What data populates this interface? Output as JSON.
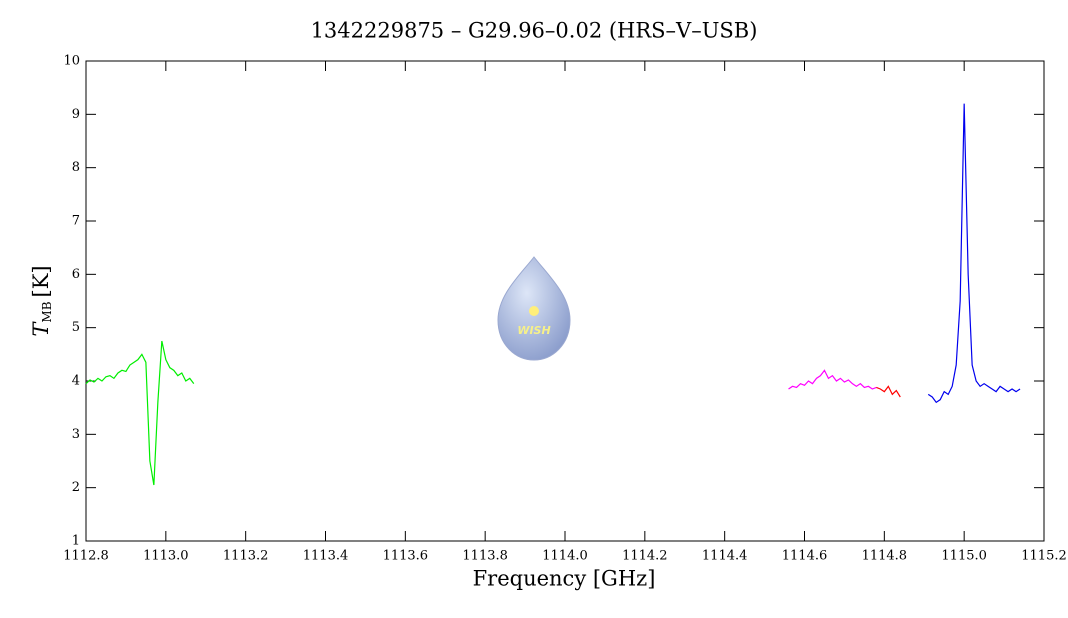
{
  "chart_data": {
    "type": "line",
    "title": "1342229875 – G29.96–0.02 (HRS–V–USB)",
    "x_label": "Frequency [GHz]",
    "y_label": {
      "symbol": "T",
      "subscript": "MB",
      "unit": "[K]"
    },
    "logo_text": "WISH",
    "xlim": [
      1112.8,
      1115.2
    ],
    "ylim": [
      1,
      10
    ],
    "xticks": [
      1112.8,
      {
        "value": 1113,
        "label": "1113.0"
      },
      1113.2,
      1113.4,
      1113.6,
      1113.8,
      {
        "value": 1114,
        "label": "1114.0"
      },
      1114.2,
      1114.4,
      1114.6,
      1114.8,
      {
        "value": 1115,
        "label": "1115.0"
      },
      1115.2
    ],
    "yticks": [
      1,
      2,
      3,
      4,
      5,
      6,
      7,
      8,
      9,
      10
    ],
    "series": [
      {
        "color": "#00ee00",
        "x": [
          1112.8,
          1112.81,
          1112.82,
          1112.83,
          1112.84,
          1112.85,
          1112.86,
          1112.87,
          1112.88,
          1112.89,
          1112.9,
          1112.91,
          1112.92,
          1112.93,
          1112.94,
          1112.95,
          1112.96,
          1112.97,
          1112.98,
          1112.99,
          1113.0,
          1113.01,
          1113.02,
          1113.03,
          1113.04,
          1113.05,
          1113.06,
          1113.07
        ],
        "values": [
          3.95,
          4.02,
          3.98,
          4.05,
          4.0,
          4.08,
          4.1,
          4.05,
          4.15,
          4.2,
          4.18,
          4.3,
          4.35,
          4.4,
          4.5,
          4.35,
          2.5,
          2.05,
          3.6,
          4.75,
          4.4,
          4.25,
          4.2,
          4.1,
          4.15,
          4.0,
          4.05,
          3.95
        ]
      },
      {
        "color": "#ff00ff",
        "x": [
          1114.56,
          1114.57,
          1114.58,
          1114.59,
          1114.6,
          1114.61,
          1114.62,
          1114.63,
          1114.64,
          1114.65,
          1114.66,
          1114.67,
          1114.68,
          1114.69,
          1114.7,
          1114.71,
          1114.72,
          1114.73,
          1114.74,
          1114.75,
          1114.76,
          1114.77,
          1114.78
        ],
        "values": [
          3.85,
          3.9,
          3.88,
          3.95,
          3.92,
          4.0,
          3.95,
          4.05,
          4.1,
          4.2,
          4.05,
          4.1,
          4.0,
          4.05,
          3.98,
          4.02,
          3.95,
          3.9,
          3.95,
          3.88,
          3.9,
          3.85,
          3.88
        ]
      },
      {
        "color": "#ff0000",
        "x": [
          1114.78,
          1114.79,
          1114.8,
          1114.81,
          1114.82,
          1114.83,
          1114.84
        ],
        "values": [
          3.88,
          3.85,
          3.8,
          3.9,
          3.75,
          3.82,
          3.7
        ]
      },
      {
        "color": "#0000ee",
        "x": [
          1114.91,
          1114.92,
          1114.93,
          1114.94,
          1114.95,
          1114.96,
          1114.97,
          1114.98,
          1114.99,
          1115.0,
          1115.01,
          1115.02,
          1115.03,
          1115.04,
          1115.05,
          1115.06,
          1115.07,
          1115.08,
          1115.09,
          1115.1,
          1115.11,
          1115.12,
          1115.13,
          1115.14
        ],
        "values": [
          3.75,
          3.7,
          3.6,
          3.65,
          3.8,
          3.75,
          3.9,
          4.3,
          5.5,
          9.2,
          6.0,
          4.3,
          4.0,
          3.9,
          3.95,
          3.9,
          3.85,
          3.8,
          3.9,
          3.85,
          3.8,
          3.85,
          3.8,
          3.85
        ]
      }
    ]
  }
}
